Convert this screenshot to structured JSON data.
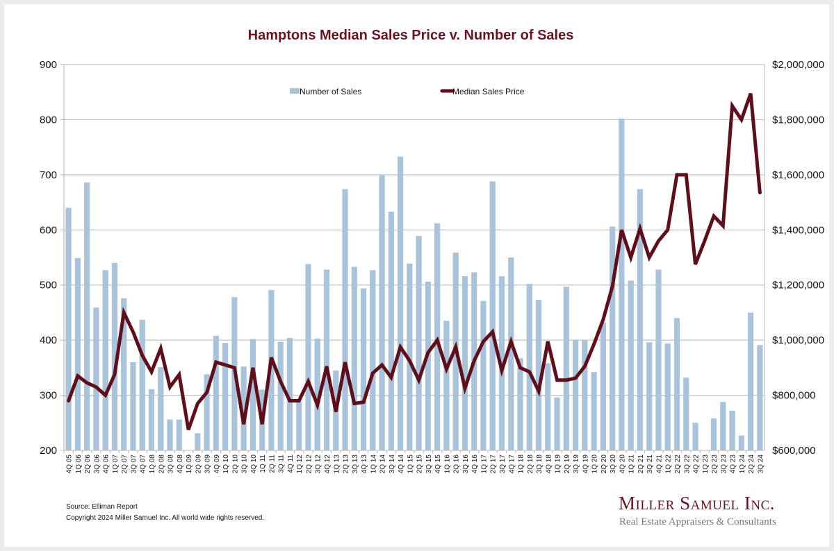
{
  "chart_data": {
    "type": "bar",
    "title": "Hamptons Median Sales Price v. Number of Sales",
    "categories": [
      "4Q 05",
      "1Q 06",
      "2Q 06",
      "3Q 06",
      "4Q 06",
      "1Q 07",
      "2Q 07",
      "3Q 07",
      "4Q 07",
      "1Q 08",
      "2Q 08",
      "3Q 08",
      "4Q 08",
      "1Q 09",
      "2Q 09",
      "3Q 09",
      "4Q 09",
      "1Q 10",
      "2Q 10",
      "3Q 10",
      "4Q 10",
      "1Q 11",
      "2Q 11",
      "3Q 11",
      "4Q 11",
      "1Q 12",
      "2Q 12",
      "3Q 12",
      "4Q 12",
      "1Q 13",
      "2Q 13",
      "3Q 13",
      "4Q 13",
      "1Q 14",
      "2Q 14",
      "3Q 14",
      "4Q 14",
      "1Q 15",
      "2Q 15",
      "3Q 15",
      "4Q 15",
      "1Q 16",
      "2Q 16",
      "3Q 16",
      "4Q 16",
      "1Q 17",
      "2Q 17",
      "3Q 17",
      "4Q 17",
      "1Q 18",
      "2Q 18",
      "3Q 18",
      "4Q 18",
      "1Q 19",
      "2Q 19",
      "3Q 19",
      "4Q 19",
      "1Q 20",
      "2Q 20",
      "3Q 20",
      "4Q 20",
      "1Q 21",
      "2Q 21",
      "3Q 21",
      "4Q 21",
      "1Q 22",
      "2Q 22",
      "3Q 22",
      "4Q 22",
      "1Q 23",
      "2Q 23",
      "3Q 23",
      "4Q 23",
      "1Q 24",
      "2Q 24",
      "3Q 24"
    ],
    "series": [
      {
        "name": "Number of Sales",
        "type": "bar",
        "axis": "left",
        "color": "#a9c4da",
        "values": [
          640,
          549,
          686,
          459,
          527,
          540,
          476,
          360,
          437,
          311,
          351,
          256,
          256,
          190,
          231,
          338,
          408,
          395,
          478,
          352,
          402,
          310,
          491,
          397,
          404,
          290,
          538,
          403,
          528,
          345,
          674,
          533,
          494,
          527,
          699,
          633,
          733,
          539,
          589,
          506,
          612,
          435,
          559,
          516,
          523,
          471,
          688,
          516,
          550,
          367,
          502,
          473,
          358,
          296,
          497,
          401,
          400,
          342,
          432,
          606,
          802,
          508,
          674,
          396,
          528,
          394,
          440,
          332,
          250,
          190,
          258,
          288,
          272,
          227,
          450,
          391
        ]
      },
      {
        "name": "Median Sales Price",
        "type": "line",
        "axis": "right",
        "color": "#5e0f1b",
        "values": [
          780000,
          870000,
          845000,
          830000,
          800000,
          875000,
          1100000,
          1030000,
          945000,
          885000,
          970000,
          830000,
          875000,
          675000,
          770000,
          810000,
          920000,
          910000,
          900000,
          695000,
          900000,
          695000,
          937000,
          850000,
          780000,
          780000,
          850000,
          765000,
          905000,
          740000,
          920000,
          770000,
          775000,
          880000,
          910000,
          865000,
          975000,
          925000,
          855000,
          955000,
          1000000,
          895000,
          975000,
          825000,
          925000,
          995000,
          1030000,
          890000,
          995000,
          900000,
          885000,
          815000,
          995000,
          855000,
          855000,
          862000,
          905000,
          985000,
          1075000,
          1195000,
          1400000,
          1300000,
          1405000,
          1300000,
          1360000,
          1400000,
          1600000,
          1600000,
          1275000,
          1360000,
          1450000,
          1415000,
          1850000,
          1800000,
          1895000,
          1535000
        ]
      }
    ],
    "left_axis": {
      "min": 200,
      "max": 900,
      "step": 100,
      "ticks": [
        "200",
        "300",
        "400",
        "500",
        "600",
        "700",
        "800",
        "900"
      ]
    },
    "right_axis": {
      "min": 600000,
      "max": 2000000,
      "step": 200000,
      "ticks": [
        "$600,000",
        "$800,000",
        "$1,000,000",
        "$1,200,000",
        "$1,400,000",
        "$1,600,000",
        "$1,800,000",
        "$2,000,000"
      ]
    },
    "xlabel": "",
    "ylabel": "",
    "grid": true,
    "legend": {
      "placement": "top-center",
      "entries": [
        "Number of Sales",
        "Median Sales Price"
      ]
    }
  },
  "footer": {
    "source": "Source: Elliman Report",
    "copyright": "Copyright 2024 Miller Samuel Inc.  All world wide rights reserved."
  },
  "logo": {
    "name": "Miller Samuel Inc.",
    "tagline": "Real Estate Appraisers & Consultants"
  }
}
